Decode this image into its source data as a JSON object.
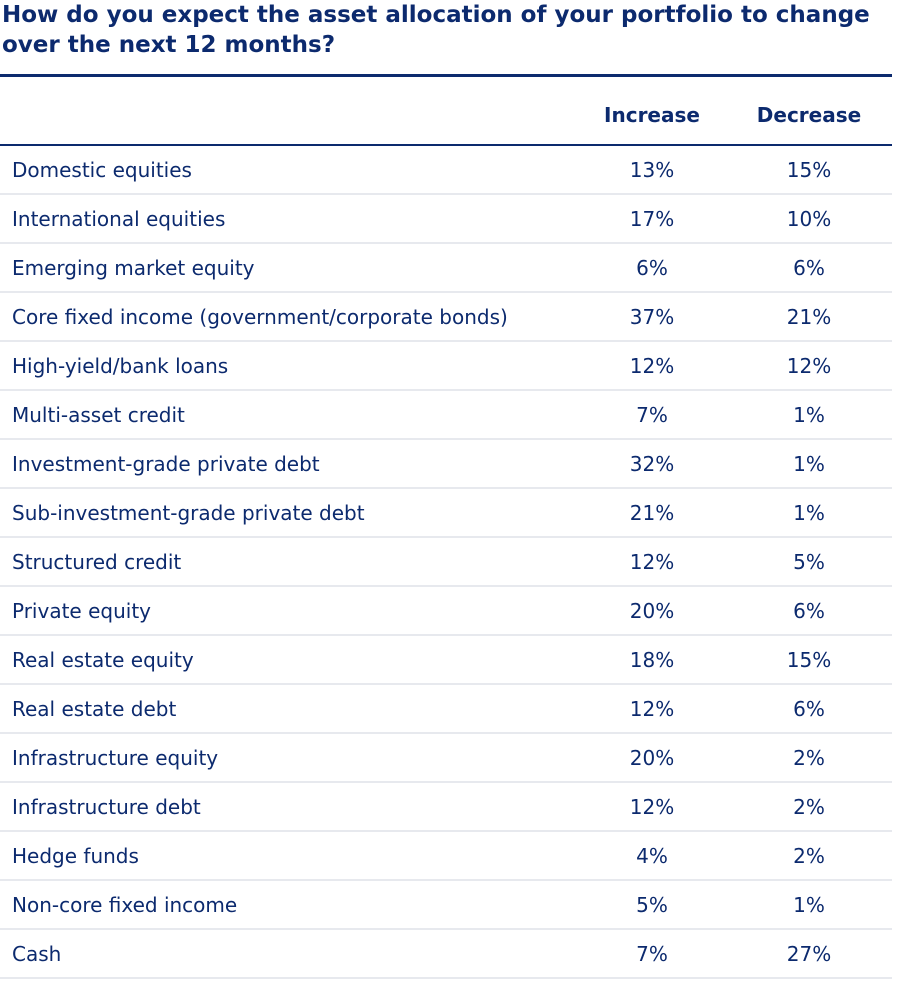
{
  "title": "How do you expect the asset allocation of your portfolio to change over the next 12 months?",
  "columns": {
    "increase": "Increase",
    "decrease": "Decrease"
  },
  "rows": [
    {
      "label": "Domestic equities",
      "increase": "13%",
      "decrease": "15%"
    },
    {
      "label": "International equities",
      "increase": "17%",
      "decrease": "10%"
    },
    {
      "label": "Emerging market equity",
      "increase": "6%",
      "decrease": "6%"
    },
    {
      "label": "Core fixed income (government/corporate bonds)",
      "increase": "37%",
      "decrease": "21%"
    },
    {
      "label": "High-yield/bank loans",
      "increase": "12%",
      "decrease": "12%"
    },
    {
      "label": "Multi-asset credit",
      "increase": "7%",
      "decrease": "1%"
    },
    {
      "label": "Investment-grade private debt",
      "increase": "32%",
      "decrease": "1%"
    },
    {
      "label": "Sub-investment-grade private debt",
      "increase": "21%",
      "decrease": "1%"
    },
    {
      "label": "Structured credit",
      "increase": "12%",
      "decrease": "5%"
    },
    {
      "label": "Private equity",
      "increase": "20%",
      "decrease": "6%"
    },
    {
      "label": "Real estate equity",
      "increase": "18%",
      "decrease": "15%"
    },
    {
      "label": "Real estate debt",
      "increase": "12%",
      "decrease": "6%"
    },
    {
      "label": "Infrastructure equity",
      "increase": "20%",
      "decrease": "2%"
    },
    {
      "label": "Infrastructure debt",
      "increase": "12%",
      "decrease": "2%"
    },
    {
      "label": "Hedge funds",
      "increase": "4%",
      "decrease": "2%"
    },
    {
      "label": "Non-core fixed income",
      "increase": "5%",
      "decrease": "1%"
    },
    {
      "label": "Cash",
      "increase": "7%",
      "decrease": "27%"
    }
  ],
  "colors": {
    "text": "#0c2a6e",
    "row_divider": "#e7e9ee"
  }
}
